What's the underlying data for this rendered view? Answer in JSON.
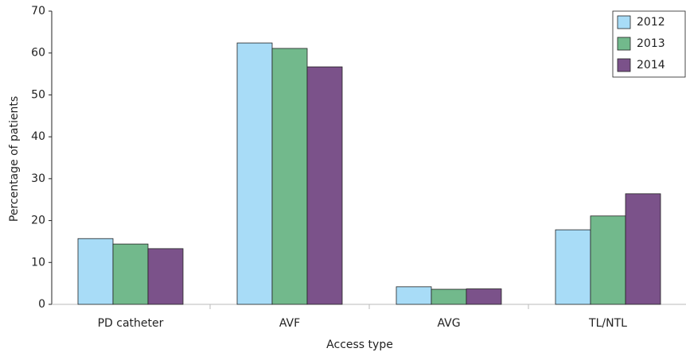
{
  "chart_data": {
    "type": "bar",
    "x_label": "Access type",
    "y_label": "Percentage of patients",
    "categories": [
      "PD catheter",
      "AVF",
      "AVG",
      "TL/NTL"
    ],
    "series": [
      {
        "name": "2012",
        "color": "#a8dcf7",
        "values": [
          15.7,
          62.4,
          4.2,
          17.8
        ]
      },
      {
        "name": "2013",
        "color": "#72b98c",
        "values": [
          14.4,
          61.1,
          3.6,
          21.1
        ]
      },
      {
        "name": "2014",
        "color": "#7b528a",
        "values": [
          13.3,
          56.7,
          3.7,
          26.4
        ]
      }
    ],
    "ylim": [
      0,
      70
    ],
    "yticks": [
      0,
      10,
      20,
      30,
      40,
      50,
      60,
      70
    ],
    "legend": "top-right"
  }
}
